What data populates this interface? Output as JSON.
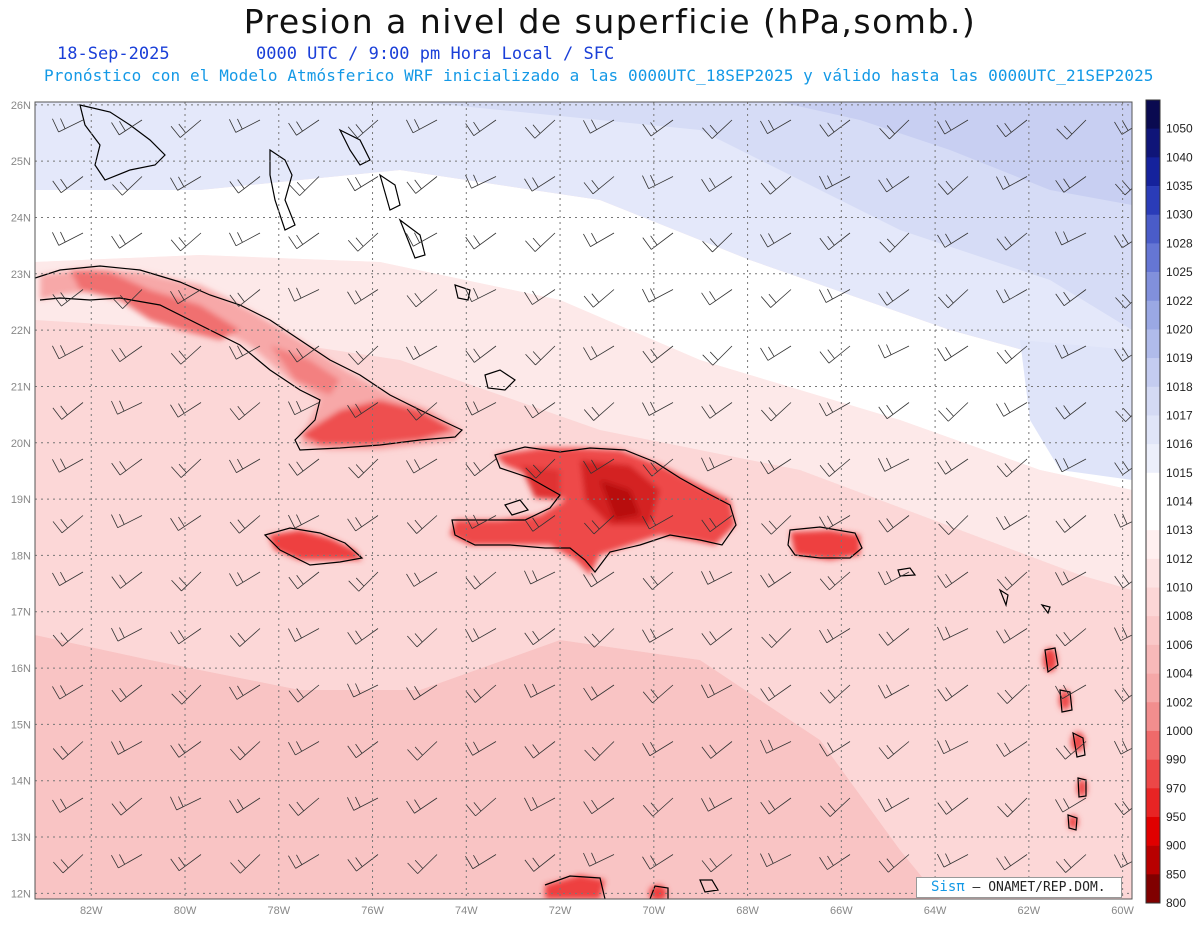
{
  "header": {
    "title": "Presion a nivel de superficie (hPa,somb.)",
    "date": "18-Sep-2025",
    "time": "0000 UTC / 9:00 pm Hora Local / SFC",
    "forecast_line": "Pronóstico con el Modelo Atmósferico WRF inicializado a las 0000UTC_18SEP2025 y válido hasta las  0000UTC_21SEP2025"
  },
  "map": {
    "lon_labels": [
      "82W",
      "80W",
      "78W",
      "76W",
      "74W",
      "72W",
      "70W",
      "68W",
      "66W",
      "64W",
      "62W",
      "60W"
    ],
    "lat_labels": [
      "26N",
      "25N",
      "24N",
      "23N",
      "22N",
      "21N",
      "20N",
      "19N",
      "18N",
      "17N",
      "16N",
      "15N",
      "14N",
      "13N",
      "12N"
    ],
    "lon_range": [
      -83.2,
      -59.8
    ],
    "lat_range": [
      11.9,
      26.05
    ],
    "grid": true
  },
  "colorbar": {
    "labels": [
      "1050",
      "1040",
      "1035",
      "1030",
      "1028",
      "1025",
      "1022",
      "1020",
      "1019",
      "1018",
      "1017",
      "1016",
      "1015",
      "1014",
      "1013",
      "1012",
      "1010",
      "1008",
      "1006",
      "1004",
      "1002",
      "1000",
      "990",
      "970",
      "950",
      "900",
      "850",
      "800"
    ],
    "colors": [
      "#0a0a50",
      "#0f1578",
      "#15229c",
      "#2a3cb8",
      "#4a5cc8",
      "#6576d4",
      "#8190dc",
      "#9aa8e4",
      "#b0bbea",
      "#c4ccf0",
      "#d4daf4",
      "#e0e5f8",
      "#eceffb",
      "#ffffff",
      "#ffffff",
      "#fff0f0",
      "#fde3e3",
      "#fcd6d6",
      "#fac8c8",
      "#f7b9b9",
      "#f5a8a8",
      "#f28e8e",
      "#ef6a6a",
      "#ec4747",
      "#e82424",
      "#e00000",
      "#b80000",
      "#800000"
    ]
  },
  "credit": {
    "brand": "Sisπ",
    "org": " – ONAMET/REP.DOM."
  }
}
